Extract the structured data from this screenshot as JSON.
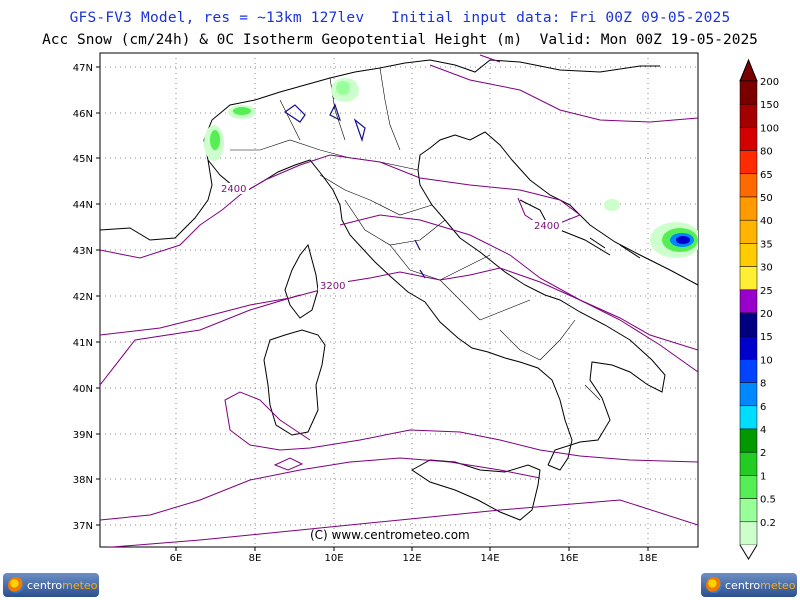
{
  "header": {
    "line1": "GFS-FV3 Model, res = ~13km 127lev   Initial input data: Fri 00Z 09-05-2025",
    "line2": "Acc Snow (cm/24h) & 0C Isotherm Geopotential Height (m)  Valid: Mon 00Z 19-05-2025"
  },
  "map": {
    "lat_labels": [
      "47N",
      "46N",
      "45N",
      "44N",
      "43N",
      "42N",
      "41N",
      "40N",
      "39N",
      "38N",
      "37N"
    ],
    "lon_labels": [
      "6E",
      "8E",
      "10E",
      "12E",
      "14E",
      "16E",
      "18E"
    ],
    "isotherm_labels": [
      "2400",
      "2400",
      "3200"
    ],
    "isotherm_color": "#800080",
    "credit": "(C) www.centrometeo.com"
  },
  "colorbar": {
    "labels": [
      "200",
      "150",
      "100",
      "80",
      "65",
      "50",
      "40",
      "35",
      "30",
      "25",
      "20",
      "15",
      "10",
      "8",
      "6",
      "4",
      "2",
      "1",
      "0.5",
      "0.2"
    ],
    "colors": [
      "#7a0000",
      "#a50000",
      "#d40000",
      "#ff2a00",
      "#ff6a00",
      "#ff9a00",
      "#ffb400",
      "#ffcc00",
      "#ffee33",
      "#9900cc",
      "#000080",
      "#0000cc",
      "#0044ff",
      "#0088ff",
      "#00ddff",
      "#009900",
      "#22cc22",
      "#55ee55",
      "#99ff99",
      "#ccffcc"
    ]
  },
  "logos": {
    "left": "centrometeo",
    "right": "centrometeo"
  }
}
